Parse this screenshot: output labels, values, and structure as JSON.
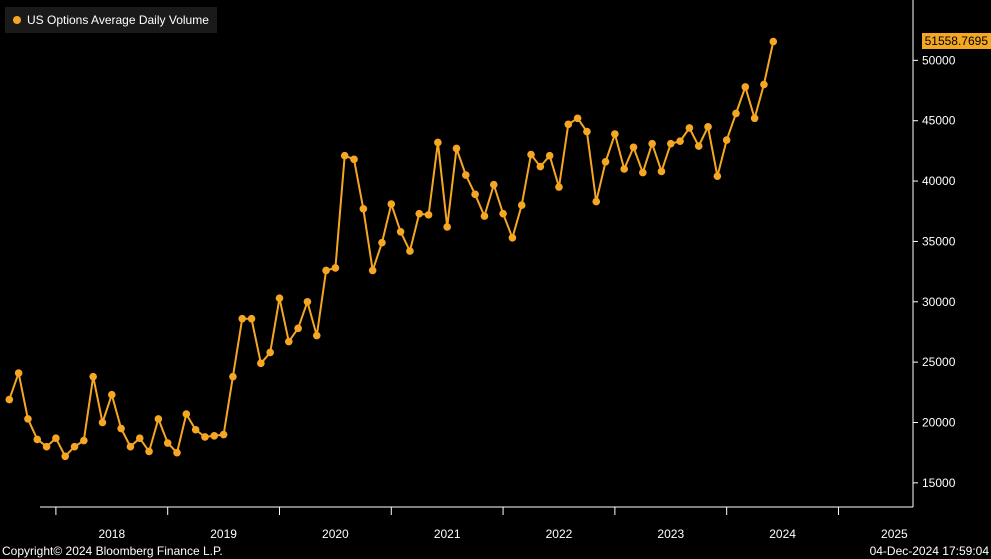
{
  "chart_data": {
    "type": "line",
    "series": [
      {
        "name": "US Options Average Daily Volume",
        "color": "#f5a623",
        "points": [
          [
            "2017-08",
            21900
          ],
          [
            "2017-09",
            24100
          ],
          [
            "2017-10",
            20300
          ],
          [
            "2017-11",
            18600
          ],
          [
            "2017-12",
            18000
          ],
          [
            "2018-01",
            18700
          ],
          [
            "2018-02",
            17200
          ],
          [
            "2018-03",
            18000
          ],
          [
            "2018-04",
            18500
          ],
          [
            "2018-05",
            23800
          ],
          [
            "2018-06",
            20000
          ],
          [
            "2018-07",
            22300
          ],
          [
            "2018-08",
            19500
          ],
          [
            "2018-09",
            18000
          ],
          [
            "2018-10",
            18700
          ],
          [
            "2018-11",
            17600
          ],
          [
            "2018-12",
            20300
          ],
          [
            "2019-01",
            18300
          ],
          [
            "2019-02",
            17500
          ],
          [
            "2019-03",
            20700
          ],
          [
            "2019-04",
            19400
          ],
          [
            "2019-05",
            18800
          ],
          [
            "2019-06",
            18900
          ],
          [
            "2019-07",
            19000
          ],
          [
            "2019-08",
            23800
          ],
          [
            "2019-09",
            28600
          ],
          [
            "2019-10",
            28600
          ],
          [
            "2019-11",
            24900
          ],
          [
            "2019-12",
            25800
          ],
          [
            "2020-01",
            30300
          ],
          [
            "2020-02",
            26700
          ],
          [
            "2020-03",
            27800
          ],
          [
            "2020-04",
            30000
          ],
          [
            "2020-05",
            27200
          ],
          [
            "2020-06",
            32600
          ],
          [
            "2020-07",
            32800
          ],
          [
            "2020-08",
            42100
          ],
          [
            "2020-09",
            41800
          ],
          [
            "2020-10",
            37700
          ],
          [
            "2020-11",
            32600
          ],
          [
            "2020-12",
            34900
          ],
          [
            "2021-01",
            38100
          ],
          [
            "2021-02",
            35800
          ],
          [
            "2021-03",
            34200
          ],
          [
            "2021-04",
            37300
          ],
          [
            "2021-05",
            37200
          ],
          [
            "2021-06",
            43200
          ],
          [
            "2021-07",
            36200
          ],
          [
            "2021-08",
            42700
          ],
          [
            "2021-09",
            40500
          ],
          [
            "2021-10",
            38900
          ],
          [
            "2021-11",
            37100
          ],
          [
            "2021-12",
            39700
          ],
          [
            "2022-01",
            37300
          ],
          [
            "2022-02",
            35300
          ],
          [
            "2022-03",
            38000
          ],
          [
            "2022-04",
            42200
          ],
          [
            "2022-05",
            41200
          ],
          [
            "2022-06",
            42100
          ],
          [
            "2022-07",
            39500
          ],
          [
            "2022-08",
            44700
          ],
          [
            "2022-09",
            45200
          ],
          [
            "2022-10",
            44100
          ],
          [
            "2022-11",
            38300
          ],
          [
            "2022-12",
            41600
          ],
          [
            "2023-01",
            43900
          ],
          [
            "2023-02",
            41000
          ],
          [
            "2023-03",
            42800
          ],
          [
            "2023-04",
            40700
          ],
          [
            "2023-05",
            43100
          ],
          [
            "2023-06",
            40800
          ],
          [
            "2023-07",
            43100
          ],
          [
            "2023-08",
            43300
          ],
          [
            "2023-09",
            44400
          ],
          [
            "2023-10",
            42900
          ],
          [
            "2023-11",
            44500
          ],
          [
            "2023-12",
            40400
          ],
          [
            "2024-01",
            43400
          ],
          [
            "2024-02",
            45600
          ],
          [
            "2024-03",
            47800
          ],
          [
            "2024-04",
            45200
          ],
          [
            "2024-05",
            48000
          ],
          [
            "2024-06",
            51558.7695
          ]
        ]
      }
    ],
    "last_value_label": "51558.7695",
    "x_labels": [
      "2018",
      "2019",
      "2020",
      "2021",
      "2022",
      "2023",
      "2024",
      "2025"
    ],
    "y_ticks": [
      15000,
      20000,
      25000,
      30000,
      35000,
      40000,
      45000,
      50000
    ],
    "ylim": [
      13000,
      55000
    ],
    "xlim": [
      "2017-07",
      "2025-09"
    ],
    "grid": false,
    "legend_position": "top-left",
    "background": "#000000",
    "axis_color": "#ffffff"
  },
  "footer": {
    "copyright": "Copyright© 2024 Bloomberg Finance L.P.",
    "timestamp": "04-Dec-2024 17:59:04"
  }
}
